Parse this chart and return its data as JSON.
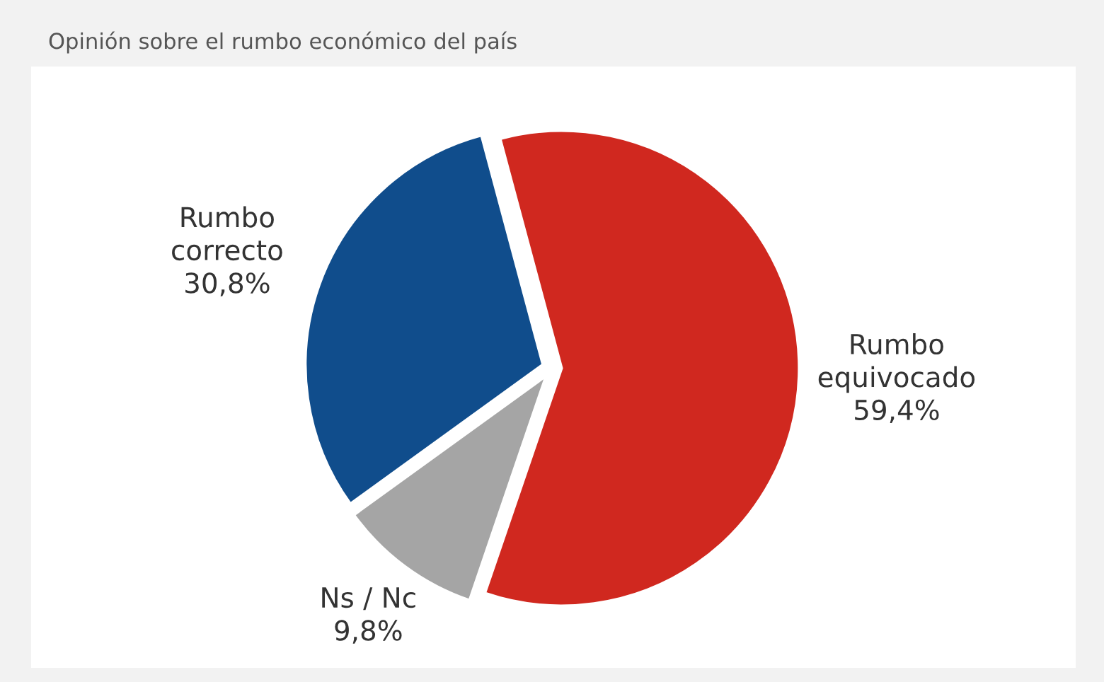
{
  "chart_data": {
    "type": "pie",
    "title": "Opinión sobre el rumbo económico del país",
    "categories": [
      "Rumbo equivocado",
      "Ns / Nc",
      "Rumbo correcto"
    ],
    "values": [
      59.4,
      9.8,
      30.8
    ],
    "value_labels": [
      "59,4%",
      "9,8%",
      "30,8%"
    ],
    "colors": [
      "#d0281f",
      "#a5a5a5",
      "#104d8c"
    ],
    "legend": false
  }
}
